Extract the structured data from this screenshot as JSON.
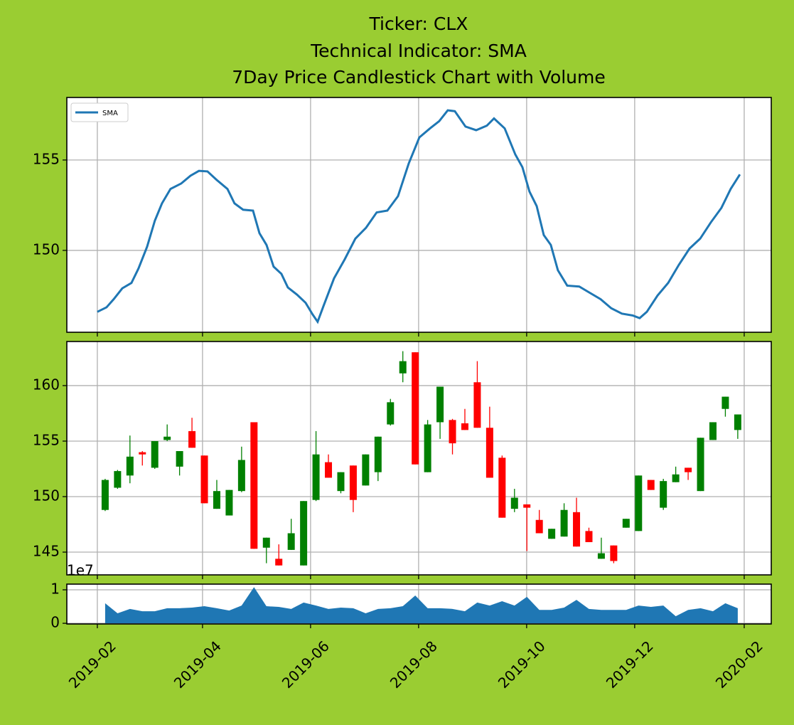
{
  "title": [
    "Ticker: CLX",
    "Technical Indicator: SMA",
    "7Day Price Candlestick Chart with Volume"
  ],
  "chart_data": [
    {
      "type": "line",
      "xlim": [
        -3.09,
        53.7
      ],
      "ylim": [
        145.47,
        158.46
      ],
      "yticks": [
        150,
        155
      ],
      "grid": true,
      "legend": "upper left",
      "series": [
        {
          "name": "SMA",
          "color": "#1f77b4",
          "x": [
            -0.63,
            0.11,
            0.69,
            1.38,
            2.12,
            2.69,
            3.38,
            4.01,
            4.58,
            5.27,
            6.13,
            6.88,
            7.56,
            8.25,
            8.99,
            9.86,
            10.43,
            11.12,
            11.92,
            12.44,
            13.01,
            13.58,
            14.21,
            14.73,
            15.47,
            16.16,
            16.73,
            17.13,
            17.59,
            18.45,
            19.31,
            20.17,
            21.03,
            21.89,
            22.75,
            23.61,
            24.47,
            25.33,
            26.19,
            26.93,
            27.62,
            28.19,
            29.05,
            29.91,
            30.77,
            31.35,
            32.21,
            33.07,
            33.64,
            34.21,
            34.79,
            35.36,
            35.93,
            36.5,
            37.25,
            38.22,
            39.08,
            39.94,
            40.8,
            41.66,
            42.52,
            43.09,
            43.67,
            44.53,
            45.39,
            46.25,
            47.11,
            47.97,
            48.83,
            49.68,
            50.43,
            51.17
          ],
          "values": [
            146.6,
            146.85,
            147.3,
            147.9,
            148.2,
            149.0,
            150.2,
            151.65,
            152.6,
            153.4,
            153.7,
            154.13,
            154.4,
            154.37,
            153.9,
            153.4,
            152.6,
            152.25,
            152.2,
            150.95,
            150.3,
            149.1,
            148.7,
            147.95,
            147.55,
            147.1,
            146.45,
            146.05,
            146.9,
            148.45,
            149.5,
            150.65,
            151.25,
            152.1,
            152.2,
            153.0,
            154.8,
            156.25,
            156.75,
            157.15,
            157.75,
            157.7,
            156.85,
            156.65,
            156.9,
            157.3,
            156.75,
            155.3,
            154.6,
            153.25,
            152.45,
            150.85,
            150.3,
            148.9,
            148.05,
            148.0,
            147.65,
            147.3,
            146.8,
            146.5,
            146.4,
            146.25,
            146.6,
            147.5,
            148.2,
            149.2,
            150.1,
            150.65,
            151.55,
            152.35,
            153.4,
            154.2
          ]
        }
      ]
    },
    {
      "type": "candlestick",
      "xlim": [
        -3.09,
        53.7
      ],
      "ylim": [
        142.95,
        163.97
      ],
      "yticks": [
        145,
        150,
        155,
        160
      ],
      "grid": true,
      "up_color": "#008000",
      "down_color": "#ff0000",
      "x": [
        0,
        1,
        2,
        3,
        4,
        5,
        6,
        7,
        8,
        9,
        10,
        11,
        12,
        13,
        14,
        15,
        16,
        17,
        18,
        19,
        20,
        21,
        22,
        23,
        24,
        25,
        26,
        27,
        28,
        29,
        30,
        31,
        32,
        33,
        34,
        35,
        36,
        37,
        38,
        39,
        40,
        41,
        42,
        43,
        44,
        45,
        46,
        47,
        48,
        49,
        50,
        51
      ],
      "open": [
        148.8,
        150.8,
        151.9,
        154.0,
        152.6,
        155.1,
        152.7,
        155.9,
        153.7,
        148.9,
        148.3,
        150.5,
        156.7,
        145.4,
        144.4,
        145.2,
        143.8,
        149.7,
        153.1,
        150.5,
        152.8,
        151.0,
        152.2,
        156.5,
        161.1,
        163.0,
        152.2,
        156.7,
        156.9,
        156.6,
        160.3,
        156.2,
        153.5,
        148.9,
        149.3,
        147.9,
        146.2,
        146.4,
        148.6,
        146.9,
        144.4,
        145.6,
        147.2,
        146.9,
        151.5,
        149.0,
        151.3,
        152.6,
        150.5,
        155.1,
        157.9,
        156.0
      ],
      "high": [
        151.6,
        152.4,
        155.5,
        154.1,
        155.0,
        156.5,
        154.1,
        157.1,
        153.7,
        151.5,
        150.6,
        154.5,
        156.7,
        146.3,
        145.7,
        148.0,
        149.6,
        155.9,
        153.8,
        152.2,
        152.8,
        153.8,
        155.4,
        158.8,
        163.1,
        163.0,
        156.9,
        159.9,
        157.0,
        157.9,
        162.2,
        158.1,
        153.7,
        150.7,
        149.3,
        148.8,
        147.1,
        149.4,
        149.9,
        147.2,
        146.3,
        145.6,
        148.0,
        151.9,
        151.5,
        151.6,
        152.7,
        152.6,
        155.3,
        156.7,
        159.0,
        157.4
      ],
      "low": [
        148.7,
        150.7,
        151.2,
        152.8,
        152.5,
        155.0,
        151.9,
        154.4,
        149.4,
        148.9,
        148.3,
        150.4,
        145.3,
        144.0,
        143.8,
        145.2,
        143.8,
        149.6,
        151.7,
        150.3,
        148.6,
        151.0,
        151.4,
        156.4,
        160.3,
        152.9,
        152.2,
        155.2,
        153.8,
        156.0,
        156.2,
        151.7,
        148.1,
        148.6,
        145.1,
        146.7,
        146.2,
        146.4,
        145.5,
        145.9,
        144.4,
        144.0,
        147.2,
        146.9,
        150.6,
        148.8,
        151.3,
        151.5,
        150.5,
        155.1,
        157.2,
        155.2
      ],
      "close": [
        151.5,
        152.3,
        153.6,
        153.8,
        155.0,
        155.4,
        154.1,
        154.4,
        149.4,
        150.5,
        150.6,
        153.3,
        145.3,
        146.3,
        143.8,
        146.7,
        149.6,
        153.8,
        151.7,
        152.2,
        149.7,
        153.8,
        155.4,
        158.5,
        162.2,
        152.9,
        156.5,
        159.9,
        154.8,
        156.0,
        156.2,
        151.7,
        148.1,
        149.9,
        149.0,
        146.7,
        147.1,
        148.8,
        145.5,
        145.9,
        144.9,
        144.2,
        148.0,
        151.9,
        150.6,
        151.4,
        152.0,
        152.2,
        155.3,
        156.7,
        159.0,
        157.4
      ]
    },
    {
      "type": "area",
      "color": "#1f77b4",
      "xlim": [
        -3.09,
        53.7
      ],
      "ylim": [
        -200000,
        11700000
      ],
      "grid": true,
      "yticks": [
        0,
        {
          "value": 10000000,
          "label": "1"
        }
      ],
      "y_offset_label": "1e7",
      "xticks": [
        {
          "value": -0.63,
          "label": "2019-02"
        },
        {
          "value": 7.85,
          "label": "2019-04"
        },
        {
          "value": 16.56,
          "label": "2019-06"
        },
        {
          "value": 25.27,
          "label": "2019-08"
        },
        {
          "value": 33.98,
          "label": "2019-10"
        },
        {
          "value": 42.69,
          "label": "2019-12"
        },
        {
          "value": 51.52,
          "label": "2020-02"
        }
      ],
      "x": [
        0,
        1,
        2,
        3,
        4,
        5,
        6,
        7,
        8,
        9,
        10,
        11,
        12,
        13,
        14,
        15,
        16,
        17,
        18,
        19,
        20,
        21,
        22,
        23,
        24,
        25,
        26,
        27,
        28,
        29,
        30,
        31,
        32,
        33,
        34,
        35,
        36,
        37,
        38,
        39,
        40,
        41,
        42,
        43,
        44,
        45,
        46,
        47,
        48,
        49,
        50,
        51
      ],
      "values": [
        6000000,
        3000000,
        4300000,
        3600000,
        3600000,
        4500000,
        4500000,
        4700000,
        5100000,
        4500000,
        3800000,
        5300000,
        10800000,
        5100000,
        4900000,
        4300000,
        6200000,
        5300000,
        4300000,
        4700000,
        4500000,
        3000000,
        4300000,
        4500000,
        5100000,
        8300000,
        4500000,
        4500000,
        4300000,
        3600000,
        6200000,
        5300000,
        6600000,
        5300000,
        7900000,
        4000000,
        4000000,
        4700000,
        7000000,
        4300000,
        4000000,
        4000000,
        4000000,
        5300000,
        4900000,
        5300000,
        2100000,
        4000000,
        4500000,
        3600000,
        6000000,
        4500000
      ]
    }
  ]
}
